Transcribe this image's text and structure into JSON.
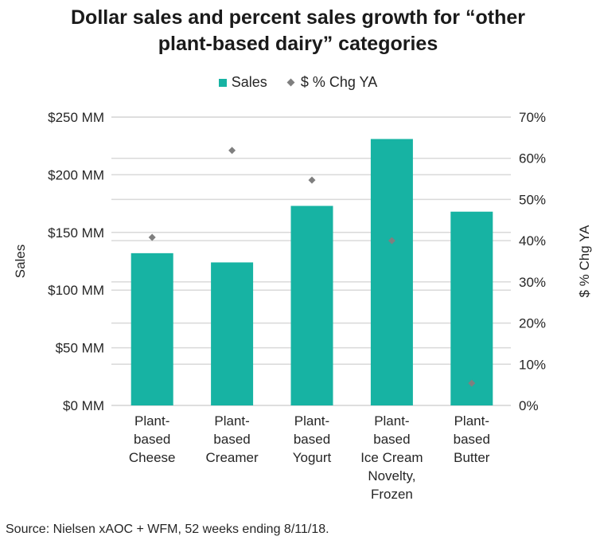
{
  "chart_data": {
    "type": "bar",
    "title": "Dollar sales and percent sales growth for “other plant-based dairy” categories",
    "title_lines": [
      "Dollar sales and percent sales growth for “other",
      "plant-based dairy” categories"
    ],
    "categories": [
      [
        "Plant-",
        "based",
        "Cheese"
      ],
      [
        "Plant-",
        "based",
        "Creamer"
      ],
      [
        "Plant-",
        "based",
        "Yogurt"
      ],
      [
        "Plant-",
        "based",
        "Ice Cream",
        "Novelty,",
        "Frozen"
      ],
      [
        "Plant-",
        "based",
        "Butter"
      ]
    ],
    "category_names": [
      "Plant-based Cheese",
      "Plant-based Creamer",
      "Plant-based Yogurt",
      "Plant-based Ice Cream Novelty, Frozen",
      "Plant-based Butter"
    ],
    "series": [
      {
        "name": "Sales",
        "type": "bar",
        "axis": "left",
        "unit": "$MM",
        "color": "#17b3a3",
        "values": [
          132,
          124,
          173,
          231,
          168
        ]
      },
      {
        "name": "$ % Chg YA",
        "type": "scatter",
        "axis": "right",
        "unit": "%",
        "color": "#7f7f7f",
        "values": [
          40.8,
          61.9,
          54.7,
          40.0,
          5.4
        ]
      }
    ],
    "ylabel": "Sales",
    "ylabel_right": "$ % Chg YA",
    "ylim": [
      0,
      250
    ],
    "ylim_right": [
      0,
      70
    ],
    "yticks": [
      0,
      50,
      100,
      150,
      200,
      250
    ],
    "ytick_labels": [
      "$0 MM",
      "$50 MM",
      "$100 MM",
      "$150 MM",
      "$200 MM",
      "$250 MM"
    ],
    "yticks_right": [
      0,
      10,
      20,
      30,
      40,
      50,
      60,
      70
    ],
    "ytick_labels_right": [
      "0%",
      "10%",
      "20%",
      "30%",
      "40%",
      "50%",
      "60%",
      "70%"
    ],
    "grid": true,
    "legend": "top-center"
  },
  "legend": {
    "sales": "Sales",
    "chg": "$ % Chg YA"
  },
  "source": "Source: Nielsen xAOC + WFM, 52 weeks ending 8/11/18."
}
